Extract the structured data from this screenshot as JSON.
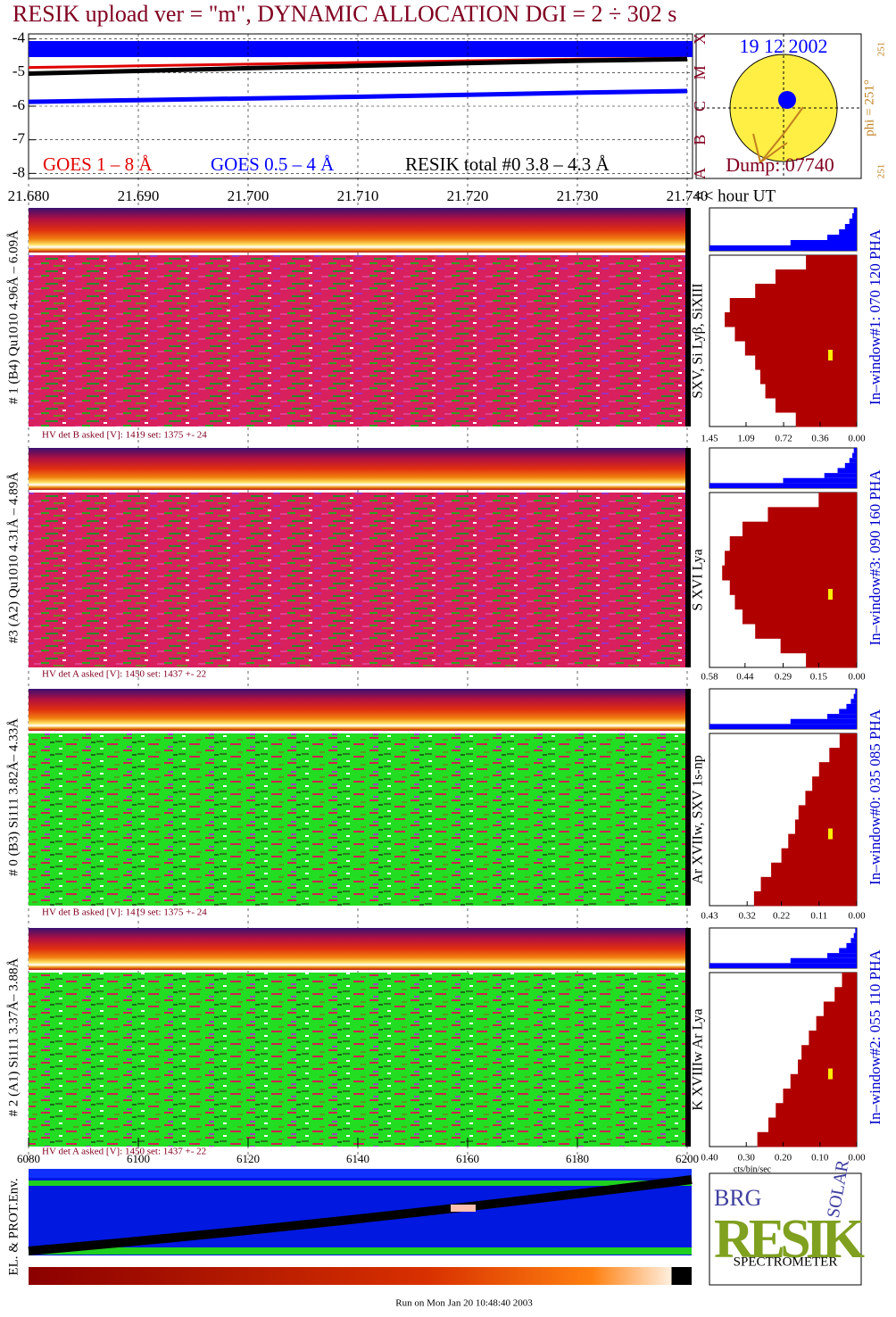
{
  "title": "RESIK upload ver = \"m\", DYNAMIC ALLOCATION  DGI =   2 ÷ 302 s",
  "chart_data": [
    {
      "type": "line",
      "x_label": "<< hour UT",
      "x": [
        21.68,
        21.69,
        21.7,
        21.71,
        21.72,
        21.73,
        21.74
      ],
      "xlim": [
        21.68,
        21.74
      ],
      "xticks": [
        {
          "value": 21.68,
          "label": "21.680"
        },
        {
          "value": 21.69,
          "label": "21.690"
        },
        {
          "value": 21.7,
          "label": "21.700"
        },
        {
          "value": 21.71,
          "label": "21.710"
        },
        {
          "value": 21.72,
          "label": "21.720"
        },
        {
          "value": 21.73,
          "label": "21.730"
        },
        {
          "value": 21.74,
          "label": "21.740"
        }
      ],
      "ylim": [
        -8.15,
        -3.85
      ],
      "yticks": [
        -4,
        -5,
        -6,
        -7,
        -8
      ],
      "y2ticks": [
        {
          "value": -8,
          "label": "A"
        },
        {
          "value": -7,
          "label": "B"
        },
        {
          "value": -6,
          "label": "C"
        },
        {
          "value": -5,
          "label": "M"
        },
        {
          "value": -4,
          "label": "X"
        }
      ],
      "grid": true,
      "series": [
        {
          "name": "GOES 1 – 8 Å",
          "color": "#e00000",
          "values": [
            -4.85,
            -4.8,
            -4.75,
            -4.7,
            -4.65,
            -4.6,
            -4.57
          ]
        },
        {
          "name": "GOES 0.5 – 4 Å",
          "color": "#0000ff",
          "values": [
            -5.87,
            -5.82,
            -5.77,
            -5.72,
            -5.66,
            -5.6,
            -5.55
          ]
        },
        {
          "name": "RESIK total #0  3.8 – 4.3 Å",
          "color": "#000000",
          "values": [
            -5.03,
            -4.95,
            -4.87,
            -4.8,
            -4.72,
            -4.65,
            -4.6
          ]
        }
      ]
    },
    {
      "type": "heatmap",
      "label": "# 1 (B4) Qu1010 4.96Å – 6.09Å",
      "line_label": "SXV, Si Lyβ, SiXIII",
      "color": "#d8205e",
      "hv": "HV det B asked [V]:  1419 set:  1375 +-  24",
      "histogram": {
        "window_label": "In–window#1:  070 120 PHA",
        "xlim": [
          1.45,
          0
        ],
        "xticks": [
          1.45,
          1.09,
          0.72,
          0.36,
          {
            "value": 0,
            "label": "0.00"
          }
        ],
        "values": [
          0.5,
          0.8,
          1.0,
          1.25,
          1.3,
          1.2,
          1.1,
          1.0,
          0.95,
          0.9,
          0.8,
          0.6
        ],
        "profile": [
          0.02,
          0.03,
          0.05,
          0.08,
          0.12,
          0.2,
          0.45,
          1.0
        ]
      }
    },
    {
      "type": "heatmap",
      "label": "#3 (A2) Qu1010  4.31Å – 4.89Å",
      "line_label": "S XVI Lya",
      "color": "#d8205e",
      "hv": "HV det A asked [V]:  1450 set:  1437 +-  22",
      "histogram": {
        "window_label": "In–window#3:  090 160 PHA",
        "xlim": [
          0.58,
          0
        ],
        "xticks": [
          0.58,
          0.44,
          0.29,
          0.15,
          {
            "value": 0,
            "label": "0.00"
          }
        ],
        "values": [
          0.15,
          0.35,
          0.45,
          0.5,
          0.52,
          0.53,
          0.5,
          0.48,
          0.45,
          0.4,
          0.3,
          0.2
        ],
        "profile": [
          0.02,
          0.03,
          0.05,
          0.08,
          0.13,
          0.22,
          0.5,
          1.0
        ]
      }
    },
    {
      "type": "heatmap",
      "label": "# 0 (B3) Si111  3.82Å– 4.33Å",
      "line_label": "Ar XVIIw,  SXV 1s-np",
      "color": "#22dd22",
      "hv": "HV det B asked [V]:  1419 set:  1375 +-  24",
      "histogram": {
        "window_label": "In–window#0:  035 085 PHA",
        "xlim": [
          0.43,
          0
        ],
        "xticks": [
          0.43,
          0.32,
          0.22,
          0.11,
          {
            "value": 0,
            "label": "0.00"
          }
        ],
        "values": [
          0.05,
          0.08,
          0.11,
          0.13,
          0.15,
          0.17,
          0.18,
          0.2,
          0.22,
          0.25,
          0.28,
          0.3
        ],
        "profile": [
          0.01,
          0.02,
          0.04,
          0.07,
          0.12,
          0.2,
          0.45,
          1.0
        ]
      }
    },
    {
      "type": "heatmap",
      "label": "# 2 (A1) Si111  3.37Å– 3.88Å",
      "line_label": "K XVIIIw  Ar Lya",
      "color": "#22dd22",
      "hv": "HV det A asked [V]:  1450 set:  1437 +-  22",
      "histogram": {
        "window_label": "In–window#2:  055 110 PHA",
        "x_label": "cts/bin/sec",
        "xlim": [
          0.4,
          0
        ],
        "xticks": [
          {
            "value": 0.4,
            "label": "0.40"
          },
          {
            "value": 0.3,
            "label": "0.30"
          },
          {
            "value": 0.2,
            "label": "0.20"
          },
          {
            "value": 0.1,
            "label": "0.10"
          },
          {
            "value": 0,
            "label": "0.00"
          }
        ],
        "values": [
          0.04,
          0.06,
          0.09,
          0.11,
          0.13,
          0.15,
          0.16,
          0.18,
          0.2,
          0.22,
          0.24,
          0.27
        ],
        "profile": [
          0.01,
          0.02,
          0.04,
          0.07,
          0.12,
          0.2,
          0.45,
          1.0
        ]
      }
    },
    {
      "type": "env",
      "label": "EL. & PROT.Env.",
      "xlim": [
        6080,
        6200
      ],
      "xticks": [
        6080,
        6100,
        6120,
        6140,
        6160,
        6180,
        6200
      ]
    }
  ],
  "sun": {
    "date": "19 12 2002",
    "dump": "Dump: 07740",
    "phi": "phi = 251°",
    "top": "251",
    "bottom": "251"
  },
  "logo": {
    "brg": "BRG",
    "resik": "RESIK",
    "solar": "SOLAR",
    "spectrometer": "SPECTROMETER"
  },
  "footer": "Run on Mon Jan 20 10:48:40 2003"
}
